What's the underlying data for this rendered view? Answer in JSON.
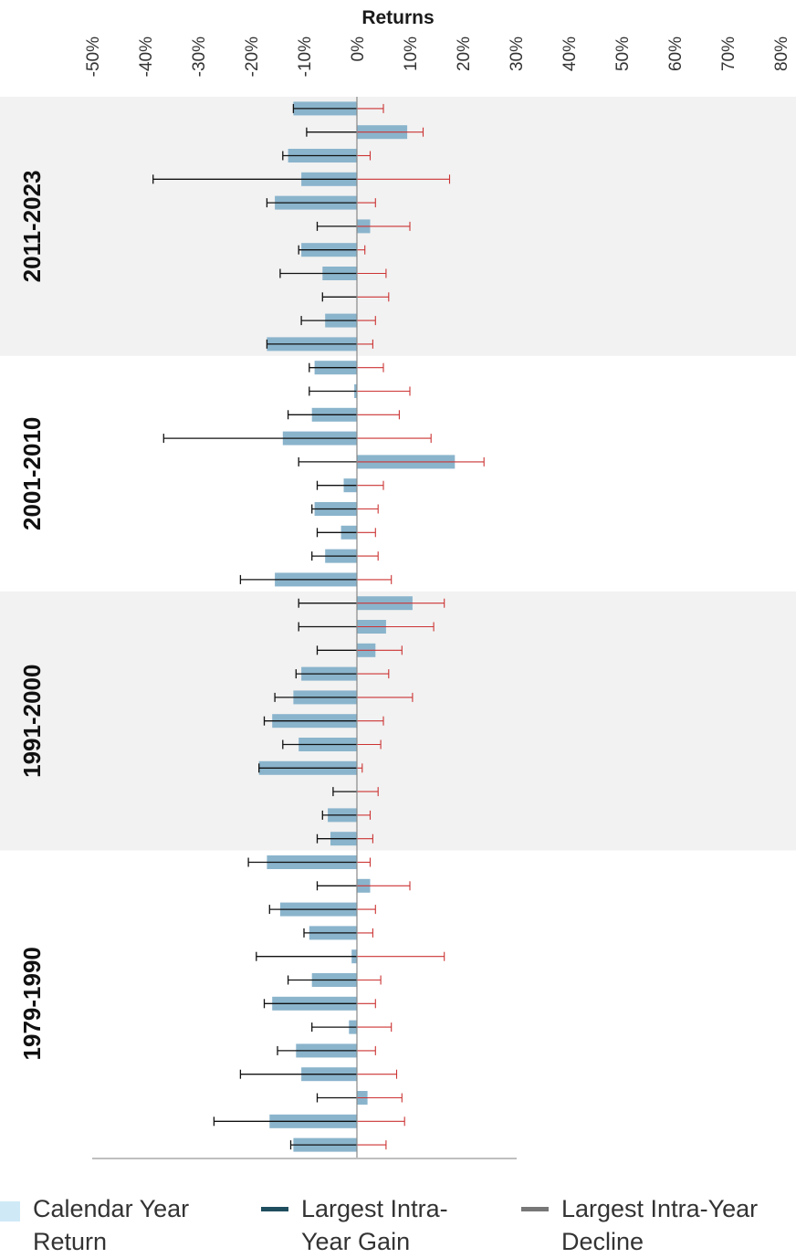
{
  "chart_data": {
    "type": "bar",
    "orientation": "horizontal",
    "title": "Returns",
    "xlabel": "Returns",
    "xlim": [
      -50,
      80
    ],
    "ticks": [
      "-50%",
      "-40%",
      "-30%",
      "-20%",
      "-10%",
      "0%",
      "10%",
      "20%",
      "30%",
      "40%",
      "50%",
      "60%",
      "70%",
      "80%"
    ],
    "tick_values": [
      -50,
      -40,
      -30,
      -20,
      -10,
      0,
      10,
      20,
      30,
      40,
      50,
      60,
      70,
      80
    ],
    "grid": false,
    "legend_position": "bottom",
    "colors": {
      "return_bar": "#8ab4cc",
      "decline_whisker": "#111111",
      "gain_whisker": "#cc3333",
      "band_shade": "#f2f2f2",
      "zero_line": "#888888",
      "legend_return": "#cfe9f7",
      "legend_gain": "#1f4e5f",
      "legend_decline": "#777777"
    },
    "groups": [
      {
        "label": "2011-2023",
        "shaded": true,
        "rows": [
          {
            "ret": -12,
            "decline": -12,
            "gain": 5
          },
          {
            "ret": 9.5,
            "decline": -9.5,
            "gain": 12.5
          },
          {
            "ret": -13,
            "decline": -14,
            "gain": 2.5
          },
          {
            "ret": -10.5,
            "decline": -38.5,
            "gain": 17.5
          },
          {
            "ret": -15.5,
            "decline": -17,
            "gain": 3.5
          },
          {
            "ret": 2.5,
            "decline": -7.5,
            "gain": 10
          },
          {
            "ret": -10.5,
            "decline": -11,
            "gain": 1.5
          },
          {
            "ret": -6.5,
            "decline": -14.5,
            "gain": 5.5
          },
          {
            "ret": 0,
            "decline": -6.5,
            "gain": 6
          },
          {
            "ret": -6,
            "decline": -10.5,
            "gain": 3.5
          },
          {
            "ret": -17,
            "decline": -17,
            "gain": 3
          }
        ]
      },
      {
        "label": "2001-2010",
        "shaded": false,
        "rows": [
          {
            "ret": -8,
            "decline": -9,
            "gain": 5
          },
          {
            "ret": -0.5,
            "decline": -9,
            "gain": 10
          },
          {
            "ret": -8.5,
            "decline": -13,
            "gain": 8
          },
          {
            "ret": -14,
            "decline": -36.5,
            "gain": 14
          },
          {
            "ret": 18.5,
            "decline": -11,
            "gain": 24
          },
          {
            "ret": -2.5,
            "decline": -7.5,
            "gain": 5
          },
          {
            "ret": -8,
            "decline": -8.5,
            "gain": 4
          },
          {
            "ret": -3,
            "decline": -7.5,
            "gain": 3.5
          },
          {
            "ret": -6,
            "decline": -8.5,
            "gain": 4
          },
          {
            "ret": -15.5,
            "decline": -22,
            "gain": 6.5
          }
        ]
      },
      {
        "label": "1991-2000",
        "shaded": true,
        "rows": [
          {
            "ret": 10.5,
            "decline": -11,
            "gain": 16.5
          },
          {
            "ret": 5.5,
            "decline": -11,
            "gain": 14.5
          },
          {
            "ret": 3.5,
            "decline": -7.5,
            "gain": 8.5
          },
          {
            "ret": -10.5,
            "decline": -11.5,
            "gain": 6
          },
          {
            "ret": -12,
            "decline": -15.5,
            "gain": 10.5
          },
          {
            "ret": -16,
            "decline": -17.5,
            "gain": 5
          },
          {
            "ret": -11,
            "decline": -14,
            "gain": 4.5
          },
          {
            "ret": -18.5,
            "decline": -18.5,
            "gain": 1
          },
          {
            "ret": 0,
            "decline": -4.5,
            "gain": 4
          },
          {
            "ret": -5.5,
            "decline": -6.5,
            "gain": 2.5
          },
          {
            "ret": -5,
            "decline": -7.5,
            "gain": 3
          }
        ]
      },
      {
        "label": "1979-1990",
        "shaded": false,
        "rows": [
          {
            "ret": -17,
            "decline": -20.5,
            "gain": 2.5
          },
          {
            "ret": 2.5,
            "decline": -7.5,
            "gain": 10
          },
          {
            "ret": -14.5,
            "decline": -16.5,
            "gain": 3.5
          },
          {
            "ret": -9,
            "decline": -10,
            "gain": 3
          },
          {
            "ret": -1,
            "decline": -19,
            "gain": 16.5
          },
          {
            "ret": -8.5,
            "decline": -13,
            "gain": 4.5
          },
          {
            "ret": -16,
            "decline": -17.5,
            "gain": 3.5
          },
          {
            "ret": -1.5,
            "decline": -8.5,
            "gain": 6.5
          },
          {
            "ret": -11.5,
            "decline": -15,
            "gain": 3.5
          },
          {
            "ret": -10.5,
            "decline": -22,
            "gain": 7.5
          },
          {
            "ret": 2,
            "decline": -7.5,
            "gain": 8.5
          },
          {
            "ret": -16.5,
            "decline": -27,
            "gain": 9
          },
          {
            "ret": -12,
            "decline": -12.5,
            "gain": 5.5
          }
        ]
      }
    ]
  },
  "legend": {
    "items": [
      {
        "label": "Calendar Year\nReturn",
        "swatch": "square",
        "color": "#cfe9f7"
      },
      {
        "label": "Largest Intra-\nYear Gain",
        "swatch": "line",
        "color": "#1f4e5f"
      },
      {
        "label": "Largest Intra-Year\nDecline",
        "swatch": "line",
        "color": "#777777"
      }
    ]
  }
}
